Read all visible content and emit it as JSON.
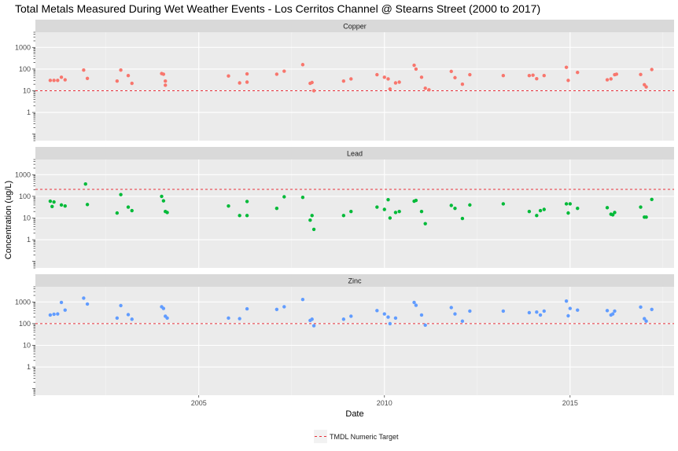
{
  "chart_data": {
    "type": "scatter",
    "title": "Total Metals Measured During Wet Weather Events - Los Cerritos Channel @ Stearns Street (2000 to 2017)",
    "xlabel": "Date",
    "ylabel": "Concentration (ug/L)",
    "x_axis": {
      "type": "date",
      "xlim": [
        2000.6,
        2017.8
      ],
      "ticks": [
        2005,
        2010,
        2015
      ],
      "tick_labels": [
        "2005",
        "2010",
        "2015"
      ]
    },
    "y_axis": {
      "scale": "log10",
      "ylim": [
        0.05,
        5000
      ],
      "ticks": [
        1,
        10,
        100,
        1000
      ],
      "tick_labels": [
        "1",
        "10",
        "100",
        "1000"
      ]
    },
    "grid": true,
    "legend": {
      "position": "bottom",
      "items": [
        {
          "label": "TMDL Numeric Target",
          "color": "#f8766d",
          "style": "dashed"
        }
      ]
    },
    "target_color": "#e8303a",
    "panels": [
      {
        "name": "Copper",
        "color": "#f8766d",
        "target": 10,
        "points": [
          {
            "x": 2001.0,
            "y": 30
          },
          {
            "x": 2001.1,
            "y": 30
          },
          {
            "x": 2001.2,
            "y": 30
          },
          {
            "x": 2001.3,
            "y": 42
          },
          {
            "x": 2001.4,
            "y": 32
          },
          {
            "x": 2001.9,
            "y": 90
          },
          {
            "x": 2002.0,
            "y": 37
          },
          {
            "x": 2002.8,
            "y": 28
          },
          {
            "x": 2002.9,
            "y": 90
          },
          {
            "x": 2003.1,
            "y": 50
          },
          {
            "x": 2003.2,
            "y": 22
          },
          {
            "x": 2004.0,
            "y": 62
          },
          {
            "x": 2004.05,
            "y": 58
          },
          {
            "x": 2004.1,
            "y": 28
          },
          {
            "x": 2004.1,
            "y": 18
          },
          {
            "x": 2005.8,
            "y": 48
          },
          {
            "x": 2006.1,
            "y": 23
          },
          {
            "x": 2006.3,
            "y": 25
          },
          {
            "x": 2006.3,
            "y": 60
          },
          {
            "x": 2007.1,
            "y": 58
          },
          {
            "x": 2007.3,
            "y": 80
          },
          {
            "x": 2007.8,
            "y": 160
          },
          {
            "x": 2008.0,
            "y": 22
          },
          {
            "x": 2008.05,
            "y": 24
          },
          {
            "x": 2008.1,
            "y": 10
          },
          {
            "x": 2008.9,
            "y": 28
          },
          {
            "x": 2009.1,
            "y": 35
          },
          {
            "x": 2009.8,
            "y": 55
          },
          {
            "x": 2010.0,
            "y": 42
          },
          {
            "x": 2010.1,
            "y": 35
          },
          {
            "x": 2010.15,
            "y": 12
          },
          {
            "x": 2010.3,
            "y": 23
          },
          {
            "x": 2010.4,
            "y": 25
          },
          {
            "x": 2010.8,
            "y": 150
          },
          {
            "x": 2010.85,
            "y": 100
          },
          {
            "x": 2011.0,
            "y": 42
          },
          {
            "x": 2011.1,
            "y": 13
          },
          {
            "x": 2011.2,
            "y": 11
          },
          {
            "x": 2011.8,
            "y": 78
          },
          {
            "x": 2011.9,
            "y": 40
          },
          {
            "x": 2012.1,
            "y": 20
          },
          {
            "x": 2012.3,
            "y": 55
          },
          {
            "x": 2013.2,
            "y": 50
          },
          {
            "x": 2013.9,
            "y": 50
          },
          {
            "x": 2014.0,
            "y": 52
          },
          {
            "x": 2014.1,
            "y": 36
          },
          {
            "x": 2014.3,
            "y": 50
          },
          {
            "x": 2014.9,
            "y": 120
          },
          {
            "x": 2014.95,
            "y": 30
          },
          {
            "x": 2015.2,
            "y": 70
          },
          {
            "x": 2016.0,
            "y": 32
          },
          {
            "x": 2016.1,
            "y": 35
          },
          {
            "x": 2016.2,
            "y": 55
          },
          {
            "x": 2016.25,
            "y": 58
          },
          {
            "x": 2016.9,
            "y": 56
          },
          {
            "x": 2017.0,
            "y": 19
          },
          {
            "x": 2017.05,
            "y": 15
          },
          {
            "x": 2017.2,
            "y": 95
          }
        ]
      },
      {
        "name": "Lead",
        "color": "#00ba38",
        "target": 210,
        "points": [
          {
            "x": 2001.0,
            "y": 60
          },
          {
            "x": 2001.05,
            "y": 34
          },
          {
            "x": 2001.1,
            "y": 55
          },
          {
            "x": 2001.3,
            "y": 40
          },
          {
            "x": 2001.4,
            "y": 36
          },
          {
            "x": 2001.95,
            "y": 370
          },
          {
            "x": 2002.0,
            "y": 42
          },
          {
            "x": 2002.8,
            "y": 17
          },
          {
            "x": 2002.9,
            "y": 120
          },
          {
            "x": 2003.1,
            "y": 32
          },
          {
            "x": 2003.2,
            "y": 22
          },
          {
            "x": 2004.0,
            "y": 100
          },
          {
            "x": 2004.05,
            "y": 62
          },
          {
            "x": 2004.1,
            "y": 20
          },
          {
            "x": 2004.15,
            "y": 18
          },
          {
            "x": 2005.8,
            "y": 36
          },
          {
            "x": 2006.1,
            "y": 13
          },
          {
            "x": 2006.3,
            "y": 13
          },
          {
            "x": 2006.3,
            "y": 58
          },
          {
            "x": 2007.1,
            "y": 28
          },
          {
            "x": 2007.3,
            "y": 95
          },
          {
            "x": 2007.8,
            "y": 90
          },
          {
            "x": 2008.0,
            "y": 8
          },
          {
            "x": 2008.05,
            "y": 13
          },
          {
            "x": 2008.1,
            "y": 3
          },
          {
            "x": 2008.9,
            "y": 13
          },
          {
            "x": 2009.1,
            "y": 20
          },
          {
            "x": 2009.8,
            "y": 32
          },
          {
            "x": 2010.0,
            "y": 25
          },
          {
            "x": 2010.1,
            "y": 70
          },
          {
            "x": 2010.15,
            "y": 10
          },
          {
            "x": 2010.3,
            "y": 18
          },
          {
            "x": 2010.4,
            "y": 20
          },
          {
            "x": 2010.8,
            "y": 60
          },
          {
            "x": 2010.85,
            "y": 65
          },
          {
            "x": 2011.0,
            "y": 20
          },
          {
            "x": 2011.1,
            "y": 5.5
          },
          {
            "x": 2011.8,
            "y": 38
          },
          {
            "x": 2011.9,
            "y": 28
          },
          {
            "x": 2012.1,
            "y": 9.5
          },
          {
            "x": 2012.3,
            "y": 40
          },
          {
            "x": 2013.2,
            "y": 45
          },
          {
            "x": 2013.9,
            "y": 20
          },
          {
            "x": 2014.1,
            "y": 13
          },
          {
            "x": 2014.2,
            "y": 22
          },
          {
            "x": 2014.3,
            "y": 25
          },
          {
            "x": 2014.9,
            "y": 45
          },
          {
            "x": 2014.95,
            "y": 17
          },
          {
            "x": 2015.0,
            "y": 45
          },
          {
            "x": 2015.2,
            "y": 28
          },
          {
            "x": 2016.0,
            "y": 30
          },
          {
            "x": 2016.1,
            "y": 15
          },
          {
            "x": 2016.15,
            "y": 14
          },
          {
            "x": 2016.2,
            "y": 18
          },
          {
            "x": 2016.9,
            "y": 32
          },
          {
            "x": 2017.0,
            "y": 11
          },
          {
            "x": 2017.05,
            "y": 11
          },
          {
            "x": 2017.2,
            "y": 72
          }
        ]
      },
      {
        "name": "Zinc",
        "color": "#619cff",
        "target": 100,
        "points": [
          {
            "x": 2001.0,
            "y": 250
          },
          {
            "x": 2001.1,
            "y": 270
          },
          {
            "x": 2001.2,
            "y": 280
          },
          {
            "x": 2001.3,
            "y": 950
          },
          {
            "x": 2001.4,
            "y": 420
          },
          {
            "x": 2001.9,
            "y": 1500
          },
          {
            "x": 2002.0,
            "y": 800
          },
          {
            "x": 2002.8,
            "y": 180
          },
          {
            "x": 2002.9,
            "y": 680
          },
          {
            "x": 2003.1,
            "y": 260
          },
          {
            "x": 2003.2,
            "y": 160
          },
          {
            "x": 2004.0,
            "y": 600
          },
          {
            "x": 2004.05,
            "y": 500
          },
          {
            "x": 2004.1,
            "y": 220
          },
          {
            "x": 2004.15,
            "y": 180
          },
          {
            "x": 2005.8,
            "y": 180
          },
          {
            "x": 2006.1,
            "y": 170
          },
          {
            "x": 2006.3,
            "y": 480
          },
          {
            "x": 2007.1,
            "y": 450
          },
          {
            "x": 2007.3,
            "y": 600
          },
          {
            "x": 2007.8,
            "y": 1300
          },
          {
            "x": 2008.0,
            "y": 140
          },
          {
            "x": 2008.05,
            "y": 160
          },
          {
            "x": 2008.1,
            "y": 80
          },
          {
            "x": 2008.9,
            "y": 160
          },
          {
            "x": 2009.1,
            "y": 220
          },
          {
            "x": 2009.8,
            "y": 400
          },
          {
            "x": 2010.0,
            "y": 280
          },
          {
            "x": 2010.1,
            "y": 200
          },
          {
            "x": 2010.15,
            "y": 100
          },
          {
            "x": 2010.3,
            "y": 180
          },
          {
            "x": 2010.8,
            "y": 950
          },
          {
            "x": 2010.85,
            "y": 700
          },
          {
            "x": 2011.0,
            "y": 250
          },
          {
            "x": 2011.1,
            "y": 85
          },
          {
            "x": 2011.8,
            "y": 550
          },
          {
            "x": 2011.9,
            "y": 280
          },
          {
            "x": 2012.1,
            "y": 130
          },
          {
            "x": 2012.3,
            "y": 380
          },
          {
            "x": 2013.2,
            "y": 380
          },
          {
            "x": 2013.9,
            "y": 320
          },
          {
            "x": 2014.1,
            "y": 340
          },
          {
            "x": 2014.2,
            "y": 250
          },
          {
            "x": 2014.3,
            "y": 380
          },
          {
            "x": 2014.9,
            "y": 1100
          },
          {
            "x": 2014.95,
            "y": 230
          },
          {
            "x": 2015.0,
            "y": 500
          },
          {
            "x": 2015.2,
            "y": 420
          },
          {
            "x": 2016.0,
            "y": 400
          },
          {
            "x": 2016.1,
            "y": 250
          },
          {
            "x": 2016.15,
            "y": 280
          },
          {
            "x": 2016.2,
            "y": 380
          },
          {
            "x": 2016.9,
            "y": 580
          },
          {
            "x": 2017.0,
            "y": 170
          },
          {
            "x": 2017.05,
            "y": 130
          },
          {
            "x": 2017.2,
            "y": 450
          }
        ]
      }
    ]
  }
}
